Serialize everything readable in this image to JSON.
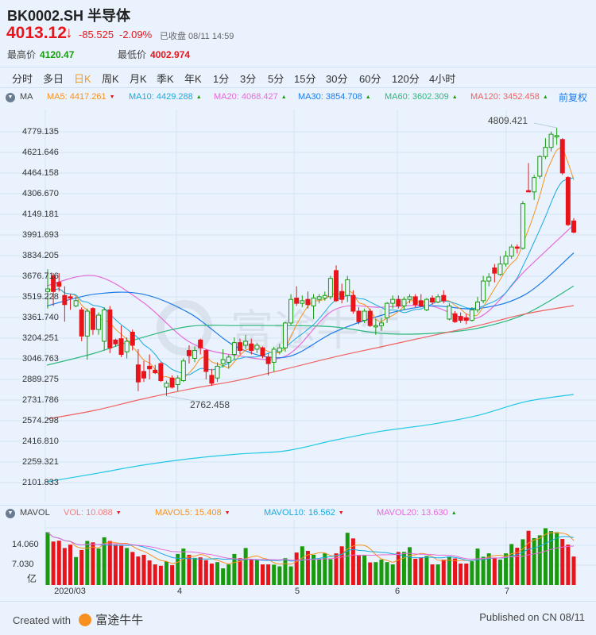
{
  "header": {
    "title": "BK0002.SH 半导体",
    "price": "4013.12",
    "arrow": "↓",
    "change": "-85.525",
    "change_pct": "-2.09%",
    "status": "已收盘 08/11 14:59",
    "high_label": "最高价",
    "high_value": "4120.47",
    "low_label": "最低价",
    "low_value": "4002.974"
  },
  "tabs": [
    {
      "label": "分时"
    },
    {
      "label": "多日"
    },
    {
      "label": "日K",
      "active": true
    },
    {
      "label": "周K"
    },
    {
      "label": "月K"
    },
    {
      "label": "季K"
    },
    {
      "label": "年K"
    },
    {
      "label": "1分"
    },
    {
      "label": "3分"
    },
    {
      "label": "5分"
    },
    {
      "label": "15分"
    },
    {
      "label": "30分"
    },
    {
      "label": "60分"
    },
    {
      "label": "120分"
    },
    {
      "label": "4小时"
    }
  ],
  "ma_legend": {
    "toggle_icon": "triangle-down-circle-icon",
    "label": "MA",
    "items": [
      {
        "text": "MA5: 4417.261",
        "trend": "▼",
        "color": "#f7901e",
        "trend_color": "#e8141b"
      },
      {
        "text": "MA10: 4429.288",
        "trend": "▲",
        "color": "#1aa9e0",
        "trend_color": "#1a9a0f"
      },
      {
        "text": "MA20: 4068.427",
        "trend": "▲",
        "color": "#e66ad8",
        "trend_color": "#1a9a0f"
      },
      {
        "text": "MA30: 3854.708",
        "trend": "▲",
        "color": "#1e7ae8",
        "trend_color": "#1a9a0f"
      },
      {
        "text": "MA60: 3602.309",
        "trend": "▲",
        "color": "#2db87d",
        "trend_color": "#1a9a0f"
      },
      {
        "text": "MA120: 3452.458",
        "trend": "▲",
        "color": "#f06060",
        "trend_color": "#1a9a0f"
      }
    ],
    "adjust_label": "前复权"
  },
  "vol_legend": {
    "label": "MAVOL",
    "items": [
      {
        "text": "VOL: 10.088",
        "trend": "▼",
        "color": "#f08080",
        "trend_color": "#e8141b"
      },
      {
        "text": "MAVOL5: 15.408",
        "trend": "▼",
        "color": "#f7901e",
        "trend_color": "#e8141b"
      },
      {
        "text": "MAVOL10: 16.562",
        "trend": "▼",
        "color": "#1aa9e0",
        "trend_color": "#e8141b"
      },
      {
        "text": "MAVOL20: 13.630",
        "trend": "▲",
        "color": "#e66ad8",
        "trend_color": "#1a9a0f"
      }
    ]
  },
  "footer": {
    "created": "Created with",
    "brand": "富途牛牛",
    "published": "Published on CN 08/11"
  },
  "colors": {
    "up": "#1a9a0f",
    "down": "#e8141b",
    "background": "#eaf3fd",
    "grid": "#d3e5f7"
  },
  "chart_data": {
    "type": "candlestick",
    "price_axis": {
      "ticks": [
        "4779.135",
        "4621.646",
        "4464.158",
        "4306.670",
        "4149.181",
        "3991.693",
        "3834.205",
        "3676.716",
        "3519.228",
        "3361.740",
        "3204.251",
        "3046.763",
        "2889.275",
        "2731.786",
        "2574.298",
        "2416.810",
        "2259.321",
        "2101.833"
      ],
      "range": [
        2101.833,
        4779.135
      ]
    },
    "x_ticks": [
      "2020/03",
      "4",
      "5",
      "6",
      "7"
    ],
    "grid": true,
    "annotations": {
      "high": "4809.421",
      "low": "2762.458"
    },
    "ohlc": [
      [
        3560,
        3730,
        3430,
        3580
      ],
      [
        3680,
        3700,
        3450,
        3560
      ],
      [
        3630,
        3700,
        3560,
        3600
      ],
      [
        3530,
        3600,
        3330,
        3460
      ],
      [
        3520,
        3540,
        3420,
        3510
      ],
      [
        3450,
        3520,
        3440,
        3490
      ],
      [
        3420,
        3440,
        3180,
        3220
      ],
      [
        3220,
        3430,
        3040,
        3410
      ],
      [
        3430,
        3440,
        3230,
        3270
      ],
      [
        3270,
        3400,
        3230,
        3380
      ],
      [
        3180,
        3440,
        3110,
        3420
      ],
      [
        3420,
        3450,
        3090,
        3130
      ],
      [
        3190,
        3200,
        3140,
        3160
      ],
      [
        3200,
        3300,
        3060,
        3080
      ],
      [
        3100,
        3210,
        3050,
        3180
      ],
      [
        3250,
        3270,
        3110,
        3150
      ],
      [
        3000,
        3120,
        2800,
        2870
      ],
      [
        2950,
        3030,
        2870,
        2900
      ],
      [
        2990,
        3080,
        2890,
        2970
      ],
      [
        2960,
        3000,
        2930,
        2940
      ],
      [
        3010,
        3020,
        2870,
        2880
      ],
      [
        2830,
        2880,
        2762.458,
        2860
      ],
      [
        2900,
        2920,
        2820,
        2830
      ],
      [
        2850,
        2920,
        2800,
        2900
      ],
      [
        2880,
        3050,
        2870,
        3030
      ],
      [
        3110,
        3150,
        3010,
        3070
      ],
      [
        3050,
        3140,
        3020,
        3110
      ],
      [
        3190,
        3200,
        3080,
        3130
      ],
      [
        3110,
        3120,
        2890,
        2950
      ],
      [
        2920,
        2970,
        2840,
        2860
      ],
      [
        2900,
        3020,
        2870,
        2990
      ],
      [
        3010,
        3120,
        2980,
        3040
      ],
      [
        3020,
        3080,
        2970,
        3060
      ],
      [
        3080,
        3210,
        3040,
        3170
      ],
      [
        3170,
        3200,
        3080,
        3110
      ],
      [
        3150,
        3230,
        3120,
        3180
      ],
      [
        3160,
        3200,
        3080,
        3110
      ],
      [
        3120,
        3170,
        3090,
        3150
      ],
      [
        3130,
        3140,
        3050,
        3070
      ],
      [
        3060,
        3090,
        2920,
        3010
      ],
      [
        3020,
        3140,
        2950,
        3120
      ],
      [
        3100,
        3160,
        3080,
        3130
      ],
      [
        3130,
        3330,
        3100,
        3320
      ],
      [
        3320,
        3540,
        3300,
        3500
      ],
      [
        3510,
        3600,
        3450,
        3470
      ],
      [
        3470,
        3530,
        3440,
        3490
      ],
      [
        3500,
        3560,
        3430,
        3460
      ],
      [
        3450,
        3540,
        3350,
        3510
      ],
      [
        3500,
        3540,
        3470,
        3520
      ],
      [
        3510,
        3560,
        3490,
        3530
      ],
      [
        3520,
        3680,
        3500,
        3660
      ],
      [
        3720,
        3760,
        3480,
        3490
      ],
      [
        3560,
        3620,
        3470,
        3500
      ],
      [
        3530,
        3680,
        3480,
        3650
      ],
      [
        3530,
        3570,
        3390,
        3410
      ],
      [
        3410,
        3440,
        3310,
        3330
      ],
      [
        3340,
        3430,
        3320,
        3410
      ],
      [
        3410,
        3430,
        3290,
        3300
      ],
      [
        3290,
        3350,
        3230,
        3300
      ],
      [
        3300,
        3360,
        3260,
        3320
      ],
      [
        3360,
        3480,
        3320,
        3470
      ],
      [
        3470,
        3530,
        3430,
        3500
      ],
      [
        3500,
        3530,
        3430,
        3450
      ],
      [
        3450,
        3520,
        3420,
        3500
      ],
      [
        3500,
        3540,
        3470,
        3520
      ],
      [
        3520,
        3540,
        3440,
        3460
      ],
      [
        3490,
        3540,
        3440,
        3450
      ],
      [
        3420,
        3510,
        3410,
        3500
      ],
      [
        3510,
        3530,
        3460,
        3480
      ],
      [
        3480,
        3540,
        3470,
        3520
      ],
      [
        3530,
        3570,
        3470,
        3490
      ],
      [
        3350,
        3470,
        3340,
        3450
      ],
      [
        3390,
        3410,
        3320,
        3330
      ],
      [
        3370,
        3400,
        3320,
        3340
      ],
      [
        3360,
        3390,
        3310,
        3340
      ],
      [
        3340,
        3440,
        3330,
        3420
      ],
      [
        3420,
        3520,
        3400,
        3480
      ],
      [
        3490,
        3680,
        3470,
        3640
      ],
      [
        3640,
        3700,
        3600,
        3670
      ],
      [
        3740,
        3770,
        3630,
        3700
      ],
      [
        3690,
        3830,
        3680,
        3770
      ],
      [
        3770,
        3870,
        3750,
        3830
      ],
      [
        3830,
        3920,
        3810,
        3900
      ],
      [
        3900,
        3920,
        3850,
        3890
      ],
      [
        3890,
        4250,
        3880,
        4230
      ],
      [
        4330,
        4540,
        4320,
        4320
      ],
      [
        4320,
        4450,
        4260,
        4430
      ],
      [
        4440,
        4600,
        4420,
        4590
      ],
      [
        4590,
        4730,
        4570,
        4660
      ],
      [
        4660,
        4780,
        4630,
        4760
      ],
      [
        4740,
        4809.421,
        4680,
        4750
      ],
      [
        4720,
        4730,
        4450,
        4465
      ],
      [
        4430,
        4440,
        4060,
        4070
      ],
      [
        4098.645,
        4120.47,
        4002.974,
        4013.12
      ]
    ],
    "ma_series": [
      {
        "name": "MA20",
        "color": "#e66ad8",
        "values": [
          3604,
          3680,
          3480,
          3170,
          3070,
          3070,
          3420,
          3440,
          3450,
          3360,
          3725,
          4068.427
        ]
      },
      {
        "name": "MA30",
        "color": "#1e7ae8",
        "values": [
          3450,
          3540,
          3540,
          3390,
          3130,
          3060,
          3250,
          3380,
          3450,
          3430,
          3540,
          3854.708
        ]
      },
      {
        "name": "MA60",
        "color": "#2db87d",
        "values": [
          2998,
          3090,
          3210,
          3295,
          3300,
          3300,
          3290,
          3240,
          3240,
          3280,
          3390,
          3602.309
        ]
      },
      {
        "name": "MA120",
        "color": "#f06060",
        "values": [
          2587,
          2653,
          2740,
          2817,
          2883,
          2970,
          3060,
          3140,
          3220,
          3300,
          3390,
          3452.458
        ]
      },
      {
        "color": "#22c8e6",
        "values": [
          2108,
          2170,
          2235,
          2285,
          2320,
          2345,
          2425,
          2495,
          2545,
          2615,
          2720,
          2775
        ]
      }
    ],
    "ma_computed": [
      {
        "name": "MA5",
        "period": 5,
        "color": "#f7901e"
      },
      {
        "name": "MA10",
        "period": 10,
        "color": "#1aa9e0"
      }
    ],
    "volume": {
      "unit": "亿",
      "ticks": [
        "14.060",
        "7.030"
      ],
      "values": [
        18.7,
        15.4,
        15.7,
        13.1,
        14.3,
        9.9,
        12.4,
        15.6,
        15.1,
        12.9,
        16.9,
        15.6,
        14.3,
        13.9,
        13.1,
        11.7,
        10.1,
        10.7,
        8.7,
        7.3,
        6.8,
        8.3,
        7.0,
        11.0,
        12.9,
        10.7,
        9.6,
        9.8,
        8.8,
        7.6,
        8.1,
        5.9,
        7.3,
        11.0,
        9.5,
        13.1,
        8.9,
        8.8,
        7.3,
        7.3,
        7.2,
        6.6,
        9.5,
        6.6,
        11.5,
        13.7,
        12.1,
        10.7,
        9.1,
        11.2,
        9.1,
        11.2,
        13.7,
        18.5,
        16.5,
        10.7,
        10.5,
        8.0,
        8.1,
        9.0,
        8.1,
        7.3,
        11.7,
        11.7,
        13.4,
        9.3,
        9.8,
        10.3,
        7.3,
        7.3,
        9.0,
        10.0,
        9.4,
        7.6,
        7.6,
        8.4,
        12.9,
        10.0,
        11.2,
        9.5,
        9.0,
        11.2,
        14.5,
        13.2,
        16.2,
        19.2,
        16.6,
        17.6,
        20.1,
        19.1,
        18.7,
        16.3,
        14.3,
        10.088
      ],
      "ma_computed": [
        {
          "name": "MAVOL5",
          "period": 5,
          "color": "#f7901e"
        },
        {
          "name": "MAVOL10",
          "period": 10,
          "color": "#1aa9e0"
        },
        {
          "name": "MAVOL20",
          "period": 20,
          "color": "#e66ad8"
        }
      ]
    }
  }
}
